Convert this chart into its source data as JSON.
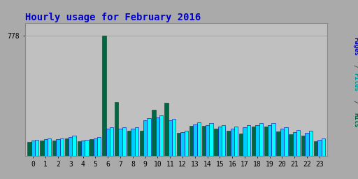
{
  "title": "Hourly usage for February 2016",
  "title_color": "#0000cc",
  "title_fontsize": 10,
  "background_color": "#aaaaaa",
  "plot_bg_color": "#c0c0c0",
  "hours": [
    0,
    1,
    2,
    3,
    4,
    5,
    6,
    7,
    8,
    9,
    10,
    11,
    12,
    13,
    14,
    15,
    16,
    17,
    18,
    19,
    20,
    21,
    22,
    23
  ],
  "pages": [
    105,
    112,
    112,
    130,
    105,
    120,
    185,
    185,
    185,
    245,
    260,
    240,
    162,
    215,
    210,
    200,
    188,
    198,
    210,
    210,
    185,
    165,
    162,
    112
  ],
  "files": [
    98,
    106,
    106,
    122,
    98,
    114,
    174,
    174,
    174,
    232,
    248,
    228,
    152,
    204,
    200,
    188,
    176,
    186,
    198,
    198,
    174,
    154,
    150,
    104
  ],
  "hits": [
    90,
    98,
    98,
    114,
    92,
    106,
    778,
    348,
    164,
    164,
    300,
    345,
    148,
    196,
    196,
    178,
    160,
    144,
    190,
    190,
    158,
    138,
    130,
    92
  ],
  "pages_color": "#00ffff",
  "files_color": "#00ccff",
  "hits_color": "#006644",
  "pages_edge": "#0000aa",
  "files_edge": "#0000aa",
  "hits_edge": "#004422",
  "grid_color": "#aaaaaa",
  "border_color": "#888888",
  "ytick_value": 778,
  "ylim_max": 860,
  "bar_width": 0.3,
  "ylabel_right_color_pages": "#0000aa",
  "ylabel_right_color_files": "#009999",
  "ylabel_right_color_hits": "#006644"
}
